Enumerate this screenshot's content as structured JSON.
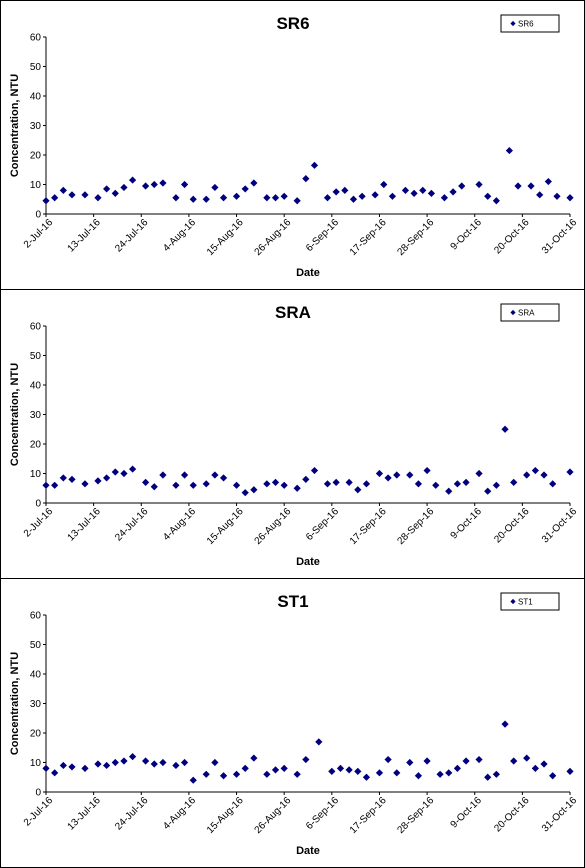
{
  "chart_data": [
    {
      "type": "scatter",
      "title": "SR6",
      "xlabel": "Date",
      "ylabel": "Concentration, NTU",
      "ylim": [
        0,
        60
      ],
      "yticks": [
        "0",
        "10",
        "20",
        "30",
        "40",
        "50",
        "60"
      ],
      "xlim": [
        "2016-07-02",
        "2016-10-31"
      ],
      "xticks": [
        "2-Jul-16",
        "13-Jul-16",
        "24-Jul-16",
        "4-Aug-16",
        "15-Aug-16",
        "26-Aug-16",
        "6-Sep-16",
        "17-Sep-16",
        "28-Sep-16",
        "9-Oct-16",
        "20-Oct-16",
        "31-Oct-16"
      ],
      "legend_position": "top-right",
      "color": "#00007f",
      "series": [
        {
          "name": "SR6",
          "x": [
            "2016-07-02",
            "2016-07-04",
            "2016-07-06",
            "2016-07-08",
            "2016-07-11",
            "2016-07-14",
            "2016-07-16",
            "2016-07-18",
            "2016-07-20",
            "2016-07-22",
            "2016-07-25",
            "2016-07-27",
            "2016-07-29",
            "2016-08-01",
            "2016-08-03",
            "2016-08-05",
            "2016-08-08",
            "2016-08-10",
            "2016-08-12",
            "2016-08-15",
            "2016-08-17",
            "2016-08-19",
            "2016-08-22",
            "2016-08-24",
            "2016-08-26",
            "2016-08-29",
            "2016-08-31",
            "2016-09-02",
            "2016-09-05",
            "2016-09-07",
            "2016-09-09",
            "2016-09-11",
            "2016-09-13",
            "2016-09-16",
            "2016-09-18",
            "2016-09-20",
            "2016-09-23",
            "2016-09-25",
            "2016-09-27",
            "2016-09-29",
            "2016-10-02",
            "2016-10-04",
            "2016-10-06",
            "2016-10-10",
            "2016-10-12",
            "2016-10-14",
            "2016-10-17",
            "2016-10-19",
            "2016-10-22",
            "2016-10-24",
            "2016-10-26",
            "2016-10-28",
            "2016-10-31"
          ],
          "y": [
            4.5,
            5.5,
            8,
            6.5,
            6.5,
            5.5,
            8.5,
            7,
            9,
            11.5,
            9.5,
            10,
            10.5,
            5.5,
            10,
            5,
            5,
            9,
            5.5,
            6,
            8.5,
            10.5,
            5.5,
            5.5,
            6,
            4.5,
            12,
            16.5,
            5.5,
            7.5,
            8,
            5,
            6,
            6.5,
            10,
            6,
            8,
            7,
            8,
            7,
            5.5,
            7.5,
            9.5,
            10,
            6,
            4.5,
            21.5,
            9.5,
            9.5,
            6.5,
            11,
            6,
            5.5
          ]
        }
      ]
    },
    {
      "type": "scatter",
      "title": "SRA",
      "xlabel": "Date",
      "ylabel": "Concentration, NTU",
      "ylim": [
        0,
        60
      ],
      "yticks": [
        "0",
        "10",
        "20",
        "30",
        "40",
        "50",
        "60"
      ],
      "xlim": [
        "2016-07-02",
        "2016-10-31"
      ],
      "xticks": [
        "2-Jul-16",
        "13-Jul-16",
        "24-Jul-16",
        "4-Aug-16",
        "15-Aug-16",
        "26-Aug-16",
        "6-Sep-16",
        "17-Sep-16",
        "28-Sep-16",
        "9-Oct-16",
        "20-Oct-16",
        "31-Oct-16"
      ],
      "legend_position": "top-right",
      "color": "#00007f",
      "series": [
        {
          "name": "SRA",
          "x": [
            "2016-07-02",
            "2016-07-04",
            "2016-07-06",
            "2016-07-08",
            "2016-07-11",
            "2016-07-14",
            "2016-07-16",
            "2016-07-18",
            "2016-07-20",
            "2016-07-22",
            "2016-07-25",
            "2016-07-27",
            "2016-07-29",
            "2016-08-01",
            "2016-08-03",
            "2016-08-05",
            "2016-08-08",
            "2016-08-10",
            "2016-08-12",
            "2016-08-15",
            "2016-08-17",
            "2016-08-19",
            "2016-08-22",
            "2016-08-24",
            "2016-08-26",
            "2016-08-29",
            "2016-08-31",
            "2016-09-02",
            "2016-09-05",
            "2016-09-07",
            "2016-09-10",
            "2016-09-12",
            "2016-09-14",
            "2016-09-17",
            "2016-09-19",
            "2016-09-21",
            "2016-09-24",
            "2016-09-26",
            "2016-09-28",
            "2016-09-30",
            "2016-10-03",
            "2016-10-05",
            "2016-10-07",
            "2016-10-10",
            "2016-10-12",
            "2016-10-14",
            "2016-10-16",
            "2016-10-18",
            "2016-10-21",
            "2016-10-23",
            "2016-10-25",
            "2016-10-27",
            "2016-10-31"
          ],
          "y": [
            6,
            6,
            8.5,
            8,
            6.5,
            7.5,
            8.5,
            10.5,
            10,
            11.5,
            7,
            5.5,
            9.5,
            6,
            9.5,
            6,
            6.5,
            9.5,
            8.5,
            6,
            3.5,
            4.5,
            6.5,
            7,
            6,
            5,
            8,
            11,
            6.5,
            7,
            7,
            4.5,
            6.5,
            10,
            8.5,
            9.5,
            9.5,
            6.5,
            11,
            6,
            4,
            6.5,
            7,
            10,
            4,
            6,
            25,
            7,
            9.5,
            11,
            9.5,
            6.5,
            10.5
          ]
        }
      ]
    },
    {
      "type": "scatter",
      "title": "ST1",
      "xlabel": "Date",
      "ylabel": "Concentration, NTU",
      "ylim": [
        0,
        60
      ],
      "yticks": [
        "0",
        "10",
        "20",
        "30",
        "40",
        "50",
        "60"
      ],
      "xlim": [
        "2016-07-02",
        "2016-10-31"
      ],
      "xticks": [
        "2-Jul-16",
        "13-Jul-16",
        "24-Jul-16",
        "4-Aug-16",
        "15-Aug-16",
        "26-Aug-16",
        "6-Sep-16",
        "17-Sep-16",
        "28-Sep-16",
        "9-Oct-16",
        "20-Oct-16",
        "31-Oct-16"
      ],
      "legend_position": "top-right",
      "color": "#00007f",
      "series": [
        {
          "name": "ST1",
          "x": [
            "2016-07-02",
            "2016-07-04",
            "2016-07-06",
            "2016-07-08",
            "2016-07-11",
            "2016-07-14",
            "2016-07-16",
            "2016-07-18",
            "2016-07-20",
            "2016-07-22",
            "2016-07-25",
            "2016-07-27",
            "2016-07-29",
            "2016-08-01",
            "2016-08-03",
            "2016-08-05",
            "2016-08-08",
            "2016-08-10",
            "2016-08-12",
            "2016-08-15",
            "2016-08-17",
            "2016-08-19",
            "2016-08-22",
            "2016-08-24",
            "2016-08-26",
            "2016-08-29",
            "2016-08-31",
            "2016-09-03",
            "2016-09-06",
            "2016-09-08",
            "2016-09-10",
            "2016-09-12",
            "2016-09-14",
            "2016-09-17",
            "2016-09-19",
            "2016-09-21",
            "2016-09-24",
            "2016-09-26",
            "2016-09-28",
            "2016-10-01",
            "2016-10-03",
            "2016-10-05",
            "2016-10-07",
            "2016-10-10",
            "2016-10-12",
            "2016-10-14",
            "2016-10-16",
            "2016-10-18",
            "2016-10-21",
            "2016-10-23",
            "2016-10-25",
            "2016-10-27",
            "2016-10-31"
          ],
          "y": [
            8,
            6.5,
            9,
            8.5,
            8,
            9.5,
            9,
            10,
            10.5,
            12,
            10.5,
            9.5,
            10,
            9,
            10,
            4,
            6,
            10,
            5.5,
            6,
            8,
            11.5,
            6,
            7.5,
            8,
            6,
            11,
            17,
            7,
            8,
            7.5,
            7,
            5,
            6.5,
            11,
            6.5,
            10,
            5.5,
            10.5,
            6,
            6.5,
            8,
            10.5,
            11,
            5,
            6,
            23,
            10.5,
            11.5,
            8,
            9.5,
            5.5,
            7
          ]
        }
      ]
    }
  ]
}
